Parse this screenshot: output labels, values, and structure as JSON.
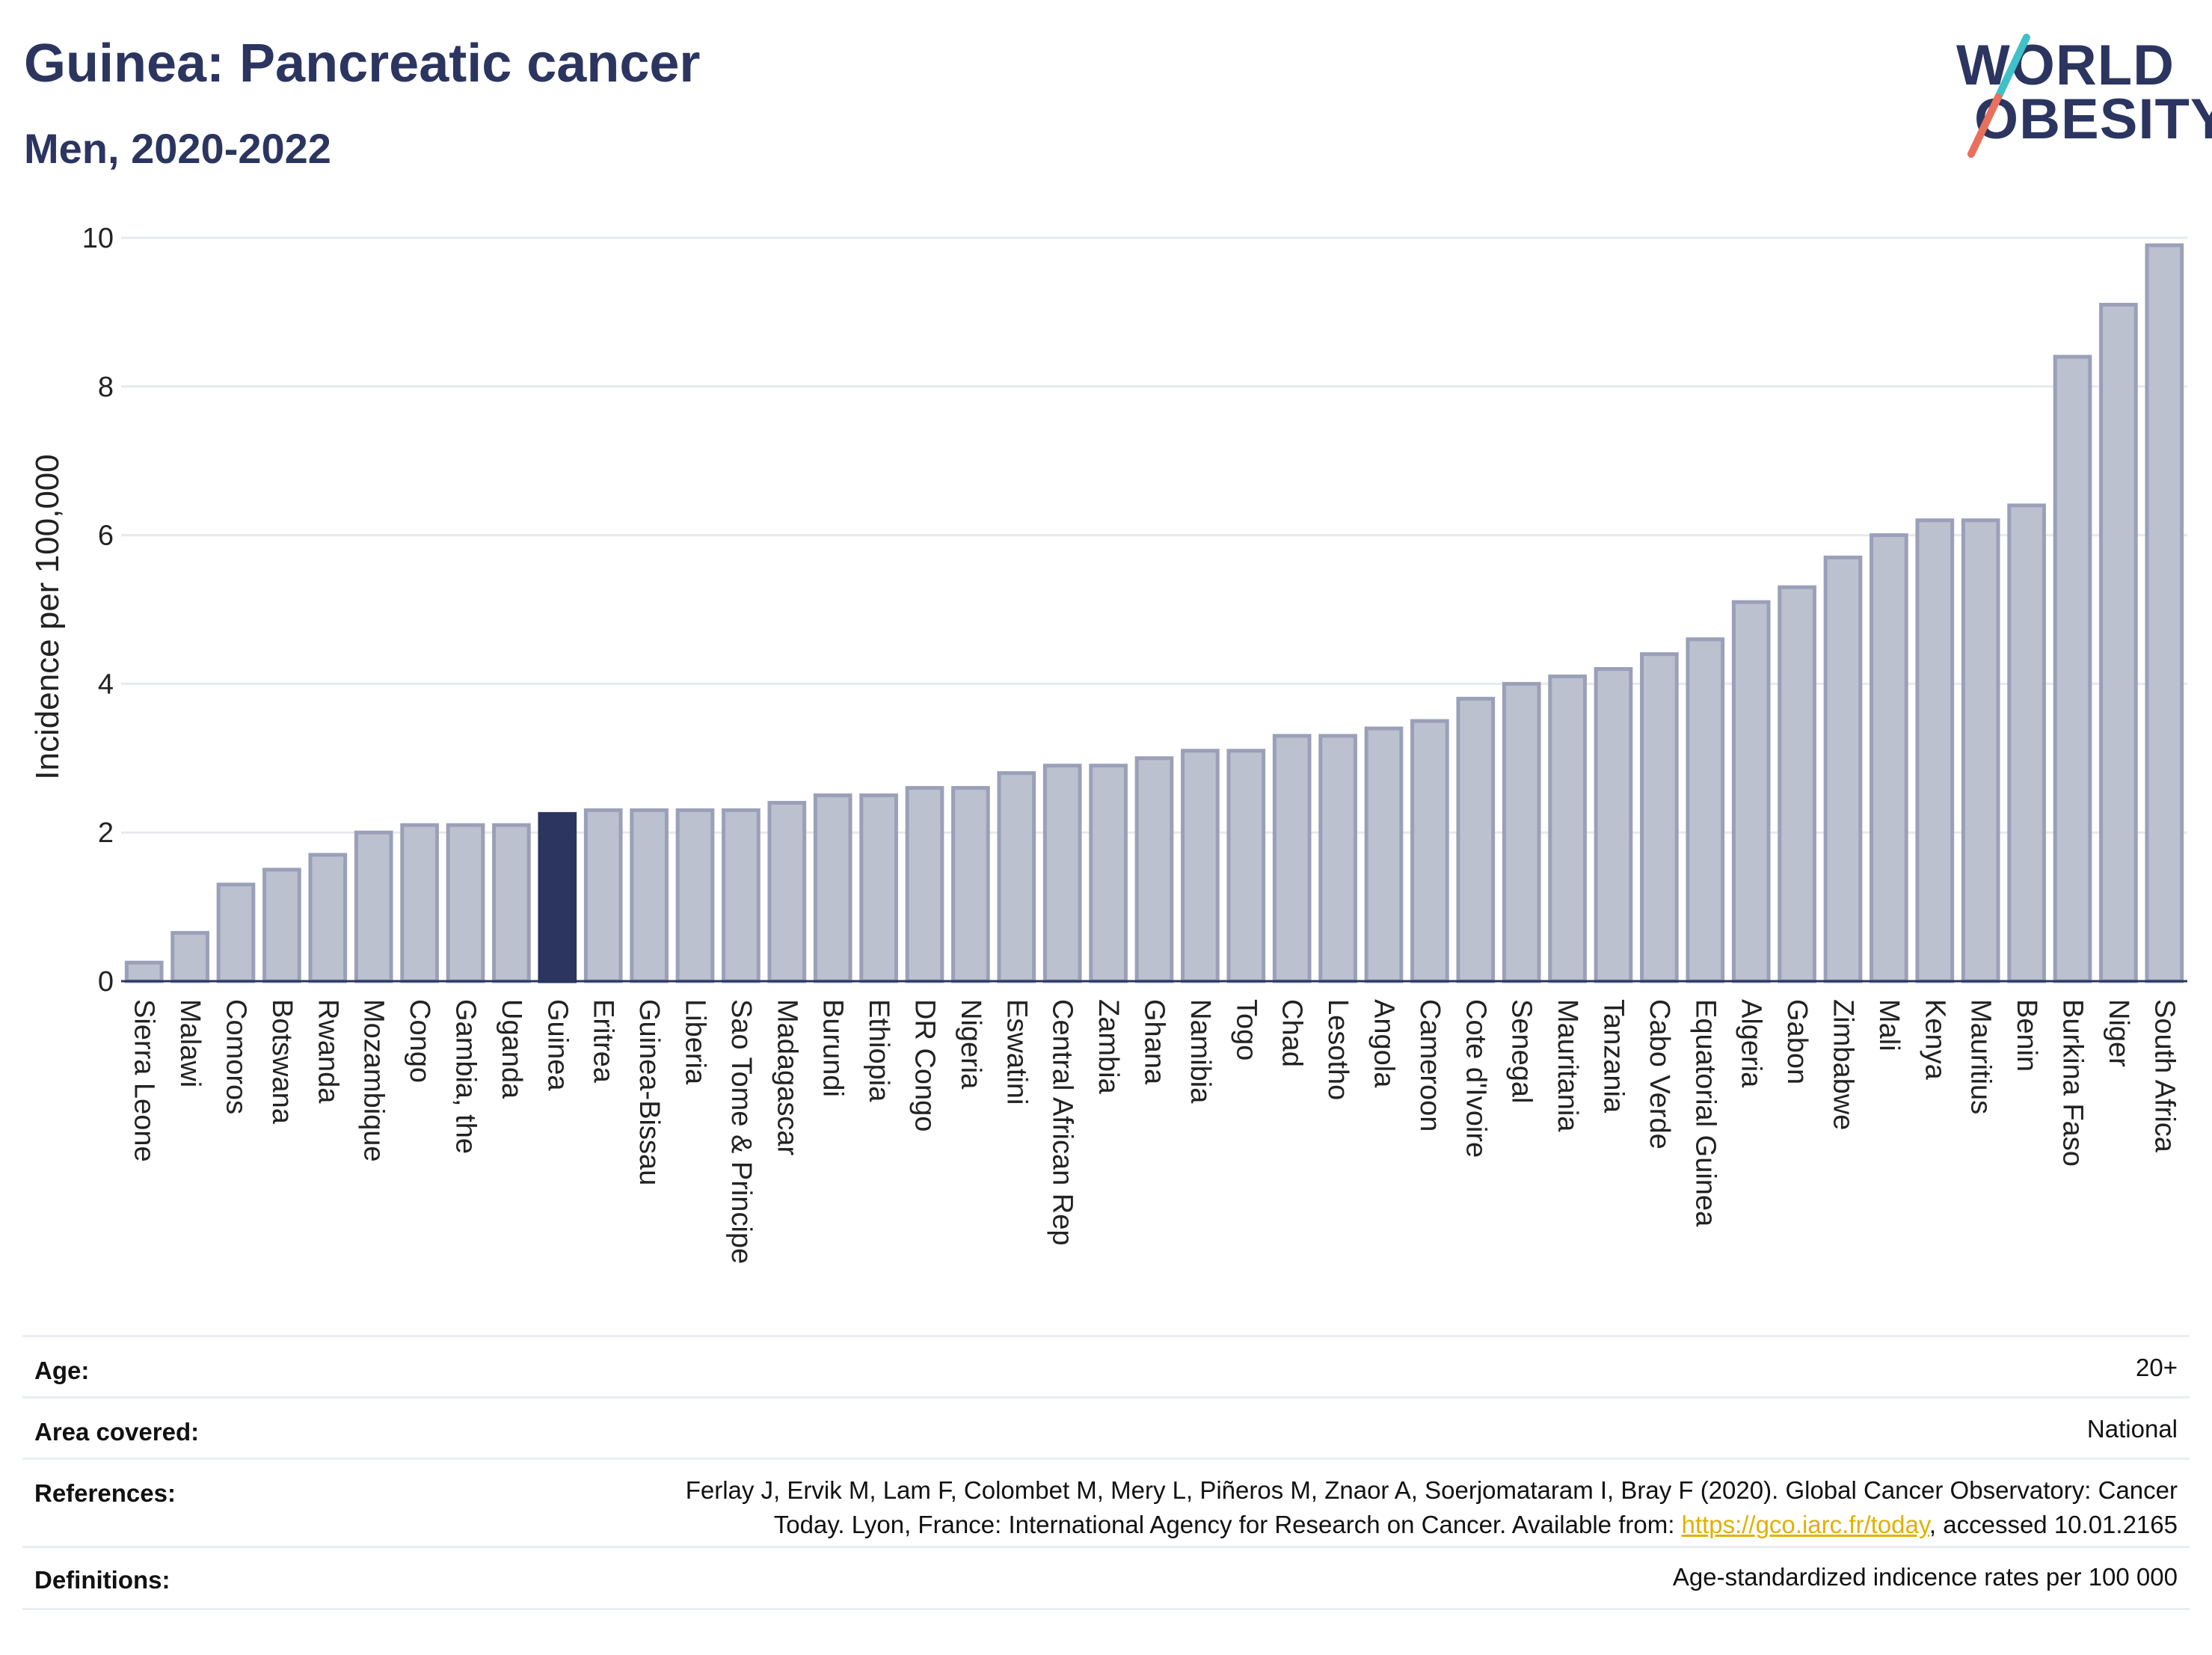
{
  "header": {
    "title": "Guinea: Pancreatic cancer",
    "subtitle": "Men, 2020-2022"
  },
  "logo": {
    "line1": "WORLD",
    "line2": "OBESITY",
    "colors": {
      "navy": "#2b3560",
      "teal": "#3fc1c9",
      "coral": "#e8705c"
    }
  },
  "chart_data": {
    "type": "bar",
    "ylabel": "Incidence per 100,000",
    "ylim": [
      0,
      10
    ],
    "yticks": [
      0,
      2,
      4,
      6,
      8,
      10
    ],
    "grid": true,
    "highlight": "Guinea",
    "colors": {
      "bar": "#bcc1d0",
      "bar_border": "#9aa0b8",
      "highlight": "#2b3560",
      "grid": "#e6e9ee"
    },
    "categories": [
      "Sierra Leone",
      "Malawi",
      "Comoros",
      "Botswana",
      "Rwanda",
      "Mozambique",
      "Congo",
      "Gambia, the",
      "Uganda",
      "Guinea",
      "Eritrea",
      "Guinea-Bissau",
      "Liberia",
      "Sao Tome & Principe",
      "Madagascar",
      "Burundi",
      "Ethiopia",
      "DR Congo",
      "Nigeria",
      "Eswatini",
      "Central African Rep",
      "Zambia",
      "Ghana",
      "Namibia",
      "Togo",
      "Chad",
      "Lesotho",
      "Angola",
      "Cameroon",
      "Cote d'Ivoire",
      "Senegal",
      "Mauritania",
      "Tanzania",
      "Cabo Verde",
      "Equatorial Guinea",
      "Algeria",
      "Gabon",
      "Zimbabwe",
      "Mali",
      "Kenya",
      "Mauritius",
      "Benin",
      "Burkina Faso",
      "Niger",
      "South Africa"
    ],
    "values": [
      0.25,
      0.65,
      1.3,
      1.5,
      1.7,
      2.0,
      2.1,
      2.1,
      2.1,
      2.25,
      2.3,
      2.3,
      2.3,
      2.3,
      2.4,
      2.5,
      2.5,
      2.6,
      2.6,
      2.8,
      2.9,
      2.9,
      3.0,
      3.1,
      3.1,
      3.3,
      3.3,
      3.4,
      3.5,
      3.8,
      4.0,
      4.1,
      4.2,
      4.4,
      4.6,
      5.1,
      5.3,
      5.7,
      6.0,
      6.2,
      6.2,
      6.4,
      8.4,
      9.1,
      9.9
    ]
  },
  "meta": {
    "age_label": "Age:",
    "age_value": "20+",
    "area_label": "Area covered:",
    "area_value": "National",
    "references_label": "References:",
    "references_line1": "Ferlay J, Ervik M, Lam F, Colombet M, Mery L, Piñeros M, Znaor A, Soerjomataram I, Bray F (2020). Global Cancer Observatory: Cancer",
    "references_line2_pre": "Today. Lyon, France: International Agency for Research on Cancer. Available from: ",
    "references_link": "https://gco.iarc.fr/today",
    "references_line2_post": ", accessed 10.01.2165",
    "definitions_label": "Definitions:",
    "definitions_value": "Age-standardized indicence rates per 100 000"
  }
}
